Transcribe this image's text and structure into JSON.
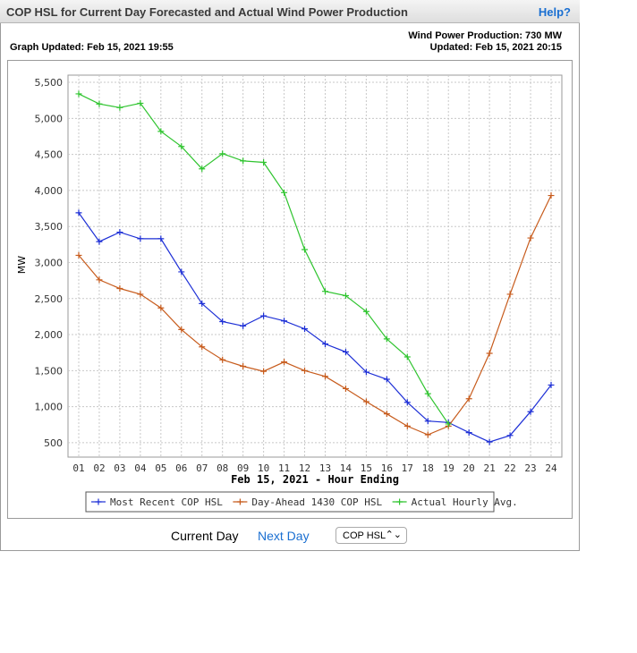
{
  "header": {
    "title": "COP HSL for Current Day Forecasted and Actual Wind Power Production",
    "help_label": "Help?"
  },
  "graph_updated": "Graph Updated: Feb 15, 2021 19:55",
  "wind_production": "Wind Power Production: 730 MW",
  "wind_updated": "Updated: Feb 15, 2021 20:15",
  "controls": {
    "current_day": "Current Day",
    "next_day": "Next Day",
    "select_value": "COP HSL",
    "select_caret": "⌃⌄"
  },
  "chart_data": {
    "type": "line",
    "xlabel": "Feb 15, 2021 - Hour Ending",
    "ylabel": "MW",
    "categories": [
      "01",
      "02",
      "03",
      "04",
      "05",
      "06",
      "07",
      "08",
      "09",
      "10",
      "11",
      "12",
      "13",
      "14",
      "15",
      "16",
      "17",
      "18",
      "19",
      "20",
      "21",
      "22",
      "23",
      "24"
    ],
    "y_ticks": [
      "500",
      "1,000",
      "1,500",
      "2,000",
      "2,500",
      "3,000",
      "3,500",
      "4,000",
      "4,500",
      "5,000",
      "5,500"
    ],
    "ylim": [
      300,
      5600
    ],
    "grid": true,
    "legend_position": "bottom",
    "series": [
      {
        "name": "Most Recent COP HSL",
        "color": "#1d2fd6",
        "values": [
          3690,
          3290,
          3420,
          3330,
          3330,
          2870,
          2430,
          2180,
          2120,
          2260,
          2190,
          2080,
          1870,
          1760,
          1480,
          1380,
          1060,
          800,
          780,
          640,
          510,
          600,
          930,
          1300
        ]
      },
      {
        "name": "Day-Ahead 1430 COP HSL",
        "color": "#c75b1c",
        "values": [
          3100,
          2760,
          2640,
          2560,
          2370,
          2070,
          1830,
          1650,
          1560,
          1490,
          1620,
          1500,
          1420,
          1250,
          1070,
          900,
          730,
          610,
          730,
          1110,
          1740,
          2560,
          3340,
          3930
        ]
      },
      {
        "name": "Actual Hourly Avg.",
        "color": "#2fc42f",
        "values": [
          5340,
          5200,
          5150,
          5210,
          4820,
          4610,
          4300,
          4510,
          4410,
          4390,
          3970,
          3180,
          2600,
          2540,
          2320,
          1940,
          1690,
          1180,
          760,
          null,
          null,
          null,
          null,
          null
        ]
      }
    ]
  }
}
